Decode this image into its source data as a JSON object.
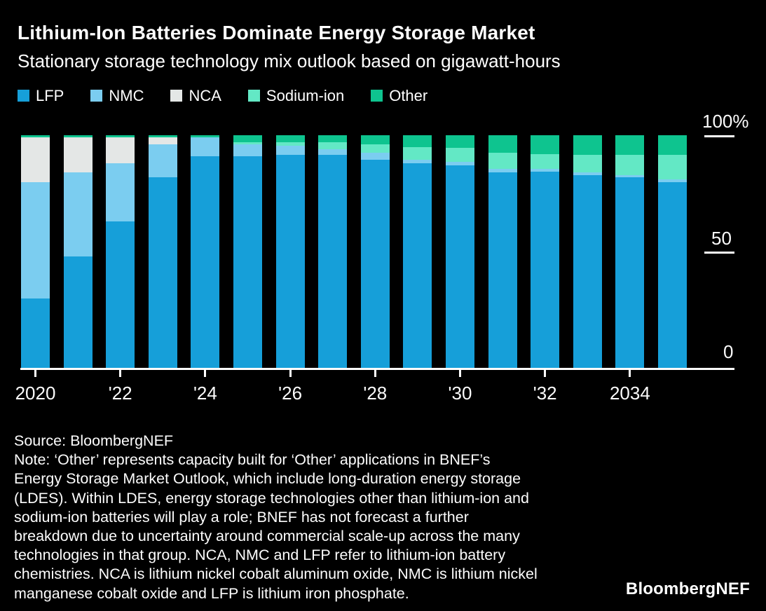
{
  "header": {
    "title": "Lithium-Ion Batteries Dominate Energy Storage Market",
    "subtitle": "Stationary storage technology mix outlook based on gigawatt-hours"
  },
  "chart_data": {
    "type": "bar",
    "stacked": true,
    "unit": "percent share",
    "title": "Stationary storage technology mix outlook based on gigawatt-hours",
    "x": [
      2020,
      2021,
      2022,
      2023,
      2024,
      2025,
      2026,
      2027,
      2028,
      2029,
      2030,
      2031,
      2032,
      2033,
      2034,
      2035
    ],
    "x_tick_labels": [
      "2020",
      "'22",
      "'24",
      "'26",
      "'28",
      "'30",
      "'32",
      "2034"
    ],
    "y_ticks": [
      "100%",
      "50",
      "0"
    ],
    "ylim": [
      0,
      100
    ],
    "grid": false,
    "legend_position": "top-left",
    "series": [
      {
        "name": "LFP",
        "color": "#169fd9",
        "values": [
          30,
          48,
          63,
          82,
          91,
          91,
          91.5,
          91.5,
          89.5,
          88,
          87,
          84,
          84.5,
          83,
          82,
          80
        ]
      },
      {
        "name": "NMC",
        "color": "#7bcdf0",
        "values": [
          50,
          36,
          25,
          14,
          8,
          5,
          4,
          2.5,
          3,
          1.5,
          1.5,
          1.5,
          1,
          1,
          1,
          1
        ]
      },
      {
        "name": "NCA",
        "color": "#e4e7e6",
        "values": [
          19,
          15,
          11,
          3,
          0,
          0,
          0,
          0,
          0,
          0,
          0,
          0,
          0,
          0,
          0,
          0
        ]
      },
      {
        "name": "Sodium-ion",
        "color": "#63e8c5",
        "values": [
          0,
          0,
          0,
          0,
          0,
          1,
          1.5,
          3,
          3.5,
          5.5,
          6,
          7,
          6.5,
          7.5,
          8.5,
          10.5
        ]
      },
      {
        "name": "Other",
        "color": "#0ec48f",
        "values": [
          1,
          1,
          1,
          1,
          1,
          3,
          3,
          3,
          4,
          5,
          5.5,
          7.5,
          8,
          8.5,
          8.5,
          8.5
        ]
      }
    ]
  },
  "footer": {
    "source": "Source: BloombergNEF",
    "note_lines": [
      "Note: ‘Other’ represents capacity built for ‘Other’ applications in BNEF’s",
      "Energy Storage Market Outlook, which include long-duration energy storage",
      "(LDES). Within LDES, energy storage technologies other than lithium-ion and",
      "sodium-ion batteries will play a role; BNEF has not forecast a further",
      "breakdown due to uncertainty around commercial scale-up across the many",
      "technologies in that group. NCA, NMC and LFP refer to lithium-ion battery",
      "chemistries. NCA is lithium nickel cobalt aluminum oxide, NMC is lithium nickel",
      "manganese cobalt oxide and LFP is lithium iron phosphate."
    ],
    "logo": "BloombergNEF"
  }
}
